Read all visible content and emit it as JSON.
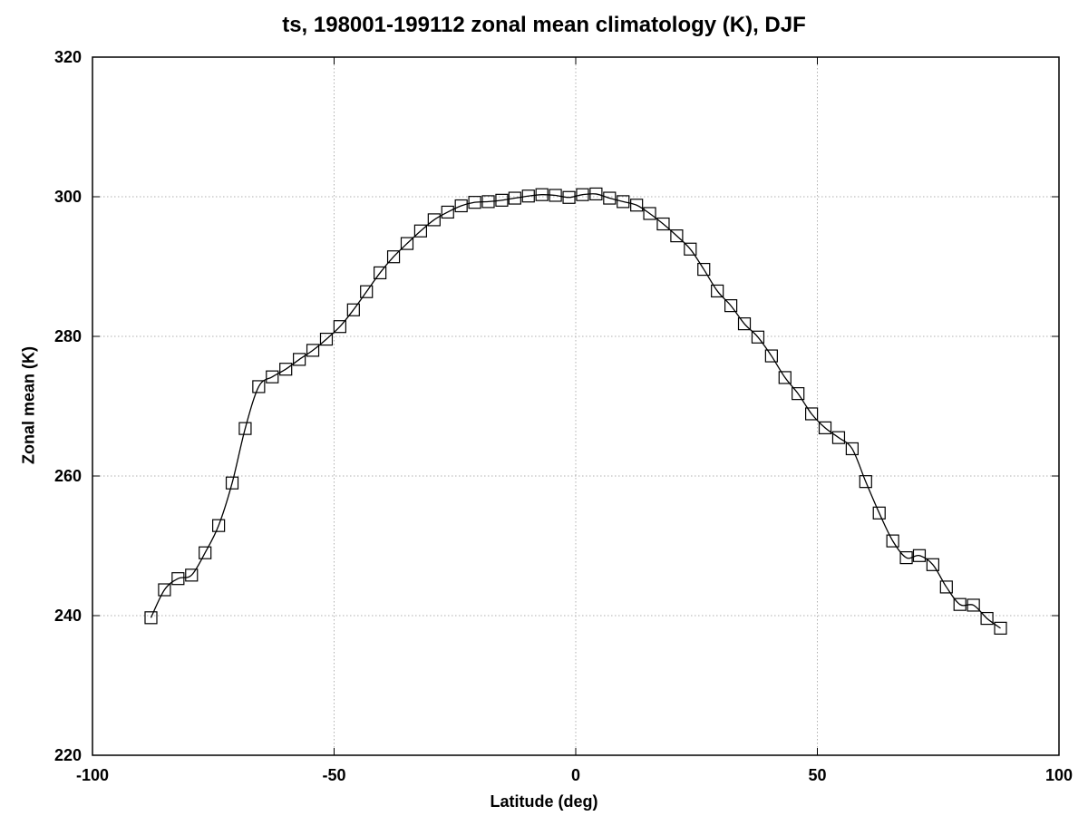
{
  "chart_data": {
    "type": "line",
    "title": "ts, 198001-199112 zonal mean climatology (K), DJF",
    "xlabel": "Latitude (deg)",
    "ylabel": "Zonal mean (K)",
    "xlim": [
      -100,
      100
    ],
    "ylim": [
      220,
      320
    ],
    "xticks": [
      "-100",
      "-50",
      "0",
      "50",
      "100"
    ],
    "yticks": [
      "220",
      "240",
      "260",
      "280",
      "300",
      "320"
    ],
    "grid": true,
    "marker": "open-square",
    "line_color": "#000000",
    "grid_color": "#b0b0b0",
    "series": [
      {
        "x": [
          -87.9,
          -85.1,
          -82.3,
          -79.5,
          -76.7,
          -73.9,
          -71.1,
          -68.4,
          -65.6,
          -62.8,
          -60.0,
          -57.2,
          -54.4,
          -51.6,
          -48.8,
          -46.0,
          -43.3,
          -40.5,
          -37.7,
          -34.9,
          -32.1,
          -29.3,
          -26.5,
          -23.7,
          -20.9,
          -18.1,
          -15.3,
          -12.6,
          -9.8,
          -7.0,
          -4.2,
          -1.4,
          1.4,
          4.2,
          7.0,
          9.8,
          12.6,
          15.3,
          18.1,
          20.9,
          23.7,
          26.5,
          29.3,
          32.1,
          34.9,
          37.7,
          40.5,
          43.3,
          46.0,
          48.8,
          51.6,
          54.4,
          57.2,
          60.0,
          62.8,
          65.6,
          68.4,
          71.1,
          73.9,
          76.7,
          79.5,
          82.3,
          85.1,
          87.9
        ],
        "y": [
          239.7,
          243.7,
          245.3,
          245.8,
          249.0,
          252.9,
          259.0,
          266.8,
          272.8,
          274.2,
          275.3,
          276.7,
          278.0,
          279.6,
          281.4,
          283.8,
          286.4,
          289.1,
          291.4,
          293.3,
          295.1,
          296.7,
          297.8,
          298.7,
          299.2,
          299.3,
          299.5,
          299.8,
          300.1,
          300.3,
          300.2,
          299.9,
          300.3,
          300.4,
          299.8,
          299.3,
          298.8,
          297.6,
          296.1,
          294.4,
          292.5,
          289.6,
          286.5,
          284.4,
          281.8,
          279.9,
          277.2,
          274.1,
          271.8,
          268.9,
          266.9,
          265.5,
          263.9,
          259.2,
          254.7,
          250.7,
          248.3,
          248.6,
          247.3,
          244.1,
          241.6,
          241.5,
          239.6,
          238.2
        ]
      }
    ]
  }
}
